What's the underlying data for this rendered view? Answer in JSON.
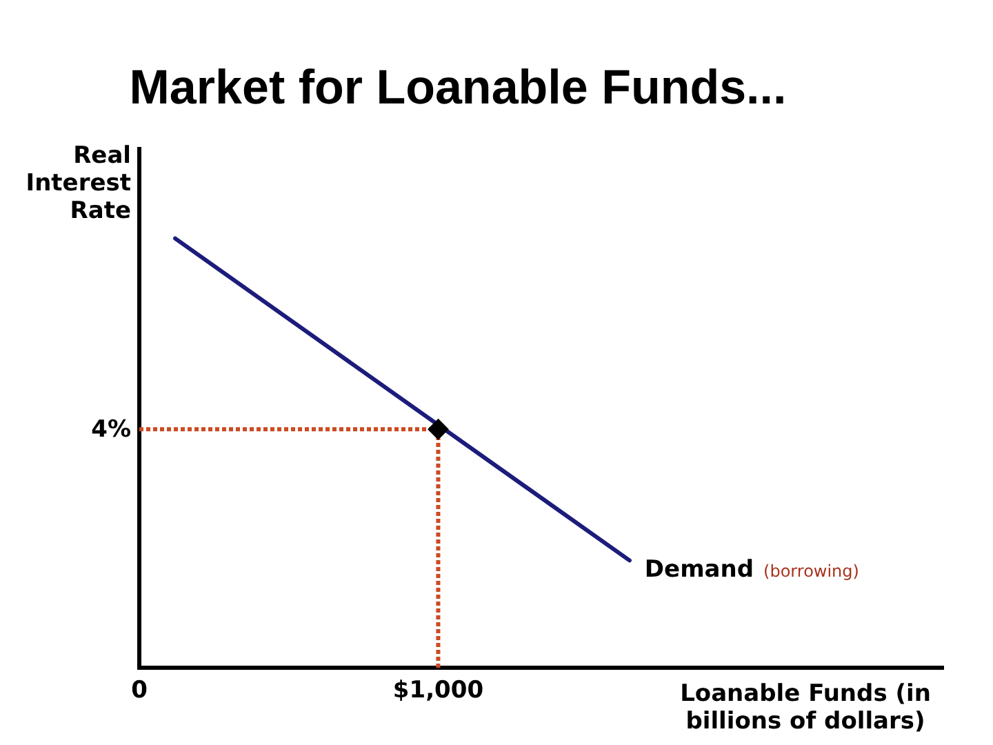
{
  "chart_data": {
    "type": "line",
    "title": "Market for Loanable Funds...",
    "xlabel": "Loanable Funds (in billions of dollars)",
    "ylabel": "Real Interest Rate",
    "xlim": [
      0,
      2690
    ],
    "ylim": [
      0,
      8.7
    ],
    "xticks": [
      0,
      {
        "value": 1000,
        "label": "$1,000"
      }
    ],
    "series": [
      {
        "name": "Demand",
        "color": "#1c1c7c",
        "x": [
          120,
          1640
        ],
        "values": [
          7.2,
          1.8
        ]
      },
      {
        "color": "#cc4a22",
        "line_style": "dotted",
        "x": [
          0,
          1000
        ],
        "values": [
          4,
          4
        ],
        "value_labels": [
          "4%",
          null
        ]
      },
      {
        "color": "#cc4a22",
        "line_style": "dotted",
        "x": [
          1000,
          1000
        ],
        "values": [
          0,
          4
        ]
      },
      {
        "type": "scatter",
        "color": "#000000",
        "marker": "diamond",
        "x": [
          1000
        ],
        "values": [
          4
        ]
      }
    ],
    "annotations": [
      "(borrowing)"
    ]
  }
}
